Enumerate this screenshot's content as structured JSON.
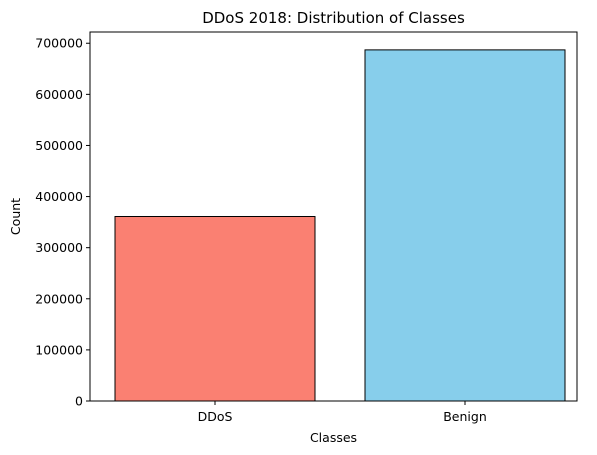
{
  "chart_data": {
    "type": "bar",
    "title": "DDoS 2018: Distribution of Classes",
    "xlabel": "Classes",
    "ylabel": "Count",
    "categories": [
      "DDoS",
      "Benign"
    ],
    "values": [
      361000,
      687000
    ],
    "bar_colors": [
      "#fa8072",
      "#87ceeb"
    ],
    "edge_color": "#000000",
    "ylim": [
      0,
      722000
    ],
    "yticks": [
      0,
      100000,
      200000,
      300000,
      400000,
      500000,
      600000,
      700000
    ],
    "ytick_labels": [
      "0",
      "100000",
      "200000",
      "300000",
      "400000",
      "500000",
      "600000",
      "700000"
    ],
    "grid": false,
    "legend": "none"
  }
}
